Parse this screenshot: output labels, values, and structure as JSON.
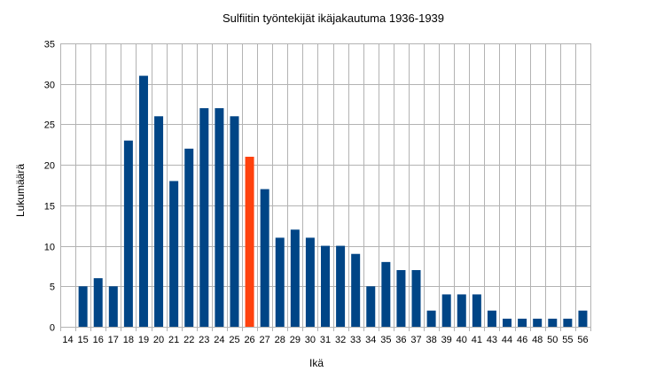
{
  "chart_data": {
    "type": "bar",
    "title": "Sulfiitin työntekijät ikäjakautuma 1936-1939",
    "xlabel": "Ikä",
    "ylabel": "Lukumäärä",
    "ylim": [
      0,
      35
    ],
    "yticks": [
      0,
      5,
      10,
      15,
      20,
      25,
      30,
      35
    ],
    "grid": true,
    "legend": "none",
    "categories": [
      "14",
      "15",
      "16",
      "17",
      "18",
      "19",
      "20",
      "21",
      "22",
      "23",
      "24",
      "25",
      "26",
      "27",
      "28",
      "29",
      "30",
      "31",
      "32",
      "33",
      "34",
      "35",
      "36",
      "37",
      "38",
      "39",
      "40",
      "41",
      "43",
      "44",
      "46",
      "48",
      "50",
      "55",
      "56"
    ],
    "values": [
      0,
      5,
      6,
      5,
      23,
      31,
      26,
      18,
      22,
      27,
      27,
      26,
      21,
      17,
      11,
      12,
      11,
      10,
      10,
      9,
      5,
      8,
      7,
      7,
      2,
      4,
      4,
      4,
      2,
      1,
      1,
      1,
      1,
      1,
      2
    ],
    "colors": {
      "bar": "#004586",
      "highlight": "#ff420e",
      "grid": "#b3b3b3"
    },
    "highlight_index": 12
  }
}
